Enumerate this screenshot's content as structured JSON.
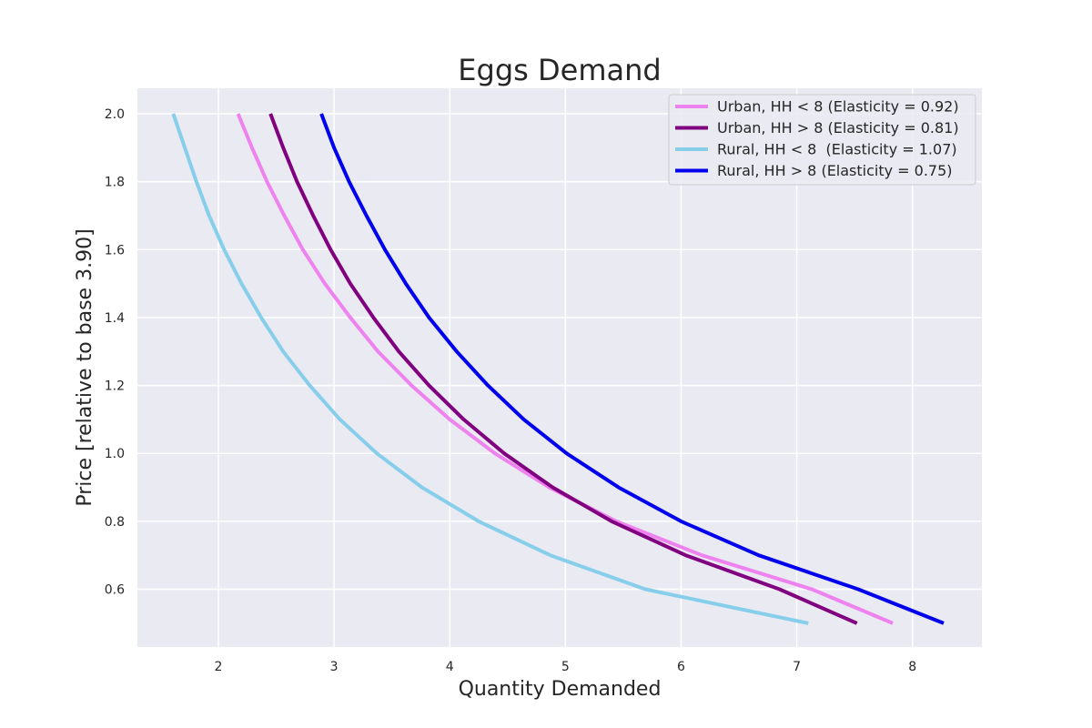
{
  "chart_data": {
    "type": "line",
    "title": "Eggs Demand",
    "xlabel": "Quantity Demanded",
    "ylabel": "Price [relative to base 3.90]",
    "xlim": [
      1.3,
      8.6
    ],
    "ylim": [
      0.43,
      2.075
    ],
    "xticks": [
      2,
      3,
      4,
      5,
      6,
      7,
      8
    ],
    "yticks": [
      0.6,
      0.8,
      1.0,
      1.2,
      1.4,
      1.6,
      1.8,
      2.0
    ],
    "ytick_labels": [
      "0.6",
      "0.8",
      "1.0",
      "1.2",
      "1.4",
      "1.6",
      "1.8",
      "2.0"
    ],
    "grid": true,
    "legend_position": "top-right",
    "price": [
      2.0,
      1.9,
      1.8,
      1.7,
      1.6,
      1.5,
      1.4,
      1.3,
      1.2,
      1.1,
      1.0,
      0.9,
      0.8,
      0.7,
      0.6,
      0.5
    ],
    "series": [
      {
        "name": "Urban, HH < 8 (Elasticity = 0.92)",
        "color": "#ee82ee",
        "quantity": [
          2.17,
          2.29,
          2.42,
          2.57,
          2.73,
          2.92,
          3.14,
          3.38,
          3.67,
          4.0,
          4.39,
          4.86,
          5.44,
          6.18,
          7.13,
          7.83
        ]
      },
      {
        "name": "Urban, HH > 8 (Elasticity = 0.81)",
        "color": "#800080",
        "quantity": [
          2.45,
          2.56,
          2.68,
          2.82,
          2.97,
          3.14,
          3.34,
          3.56,
          3.82,
          4.12,
          4.47,
          4.89,
          5.4,
          6.04,
          6.85,
          7.52
        ]
      },
      {
        "name": "Rural, HH < 8  (Elasticity = 1.07)",
        "color": "#87ceeb",
        "quantity": [
          1.61,
          1.71,
          1.81,
          1.92,
          2.05,
          2.2,
          2.37,
          2.56,
          2.79,
          3.05,
          3.37,
          3.76,
          4.25,
          4.87,
          5.69,
          7.1
        ]
      },
      {
        "name": "Rural, HH > 8 (Elasticity = 0.75)",
        "color": "#0000ee",
        "quantity": [
          2.89,
          3.0,
          3.13,
          3.28,
          3.44,
          3.62,
          3.82,
          4.06,
          4.33,
          4.64,
          5.01,
          5.46,
          6.0,
          6.67,
          7.53,
          8.27
        ]
      }
    ]
  }
}
